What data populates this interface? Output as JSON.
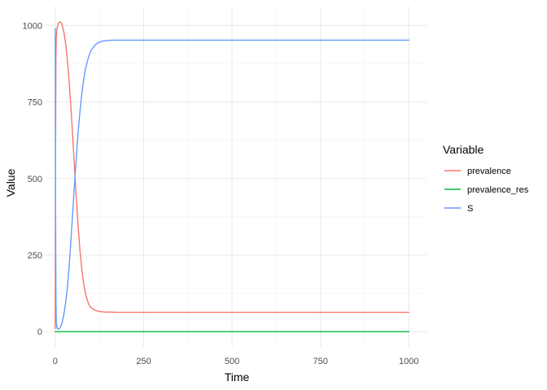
{
  "chart_data": {
    "type": "line",
    "title": "",
    "xlabel": "Time",
    "ylabel": "Value",
    "xlim": [
      -25,
      1050
    ],
    "ylim": [
      -50,
      1062
    ],
    "x_ticks": [
      0,
      250,
      500,
      750,
      1000
    ],
    "y_ticks": [
      0,
      250,
      500,
      750,
      1000
    ],
    "grid": true,
    "legend": {
      "title": "Variable",
      "placement": "right",
      "entries": [
        "prevalence",
        "prevalence_res",
        "S"
      ]
    },
    "colors": {
      "prevalence": "#F8766D",
      "prevalence_res": "#00BA38",
      "S": "#619CFF"
    },
    "series": [
      {
        "name": "prevalence",
        "x": [
          0,
          1,
          2,
          3,
          5,
          8,
          12,
          16,
          20,
          25,
          30,
          35,
          40,
          45,
          50,
          55,
          60,
          65,
          70,
          75,
          80,
          85,
          90,
          95,
          100,
          110,
          120,
          130,
          140,
          150,
          175,
          200,
          300,
          500,
          750,
          1000
        ],
        "y": [
          10,
          600,
          900,
          960,
          990,
          1005,
          1012,
          1010,
          1000,
          975,
          935,
          880,
          805,
          720,
          625,
          525,
          430,
          340,
          265,
          205,
          160,
          127,
          104,
          89,
          80,
          71,
          67,
          65,
          64,
          64,
          63,
          63,
          63,
          63,
          63,
          63
        ]
      },
      {
        "name": "prevalence_res",
        "x": [
          0,
          1000
        ],
        "y": [
          0,
          0
        ]
      },
      {
        "name": "S",
        "x": [
          0,
          1,
          2,
          3,
          5,
          8,
          12,
          16,
          20,
          25,
          30,
          35,
          40,
          45,
          50,
          55,
          60,
          65,
          70,
          75,
          80,
          85,
          90,
          95,
          100,
          110,
          120,
          130,
          140,
          150,
          160,
          175,
          200,
          300,
          500,
          750,
          1000
        ],
        "y": [
          990,
          400,
          100,
          30,
          12,
          8,
          10,
          18,
          32,
          60,
          100,
          150,
          225,
          310,
          400,
          490,
          575,
          655,
          720,
          775,
          820,
          855,
          880,
          900,
          915,
          933,
          943,
          948,
          950,
          951,
          952,
          952,
          952,
          952,
          952,
          952,
          952
        ]
      }
    ]
  }
}
